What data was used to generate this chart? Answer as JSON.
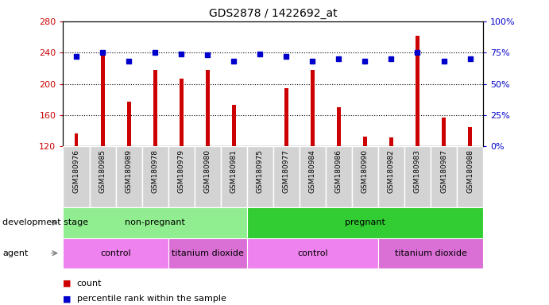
{
  "title": "GDS2878 / 1422692_at",
  "samples": [
    "GSM180976",
    "GSM180985",
    "GSM180989",
    "GSM180978",
    "GSM180979",
    "GSM180980",
    "GSM180981",
    "GSM180975",
    "GSM180977",
    "GSM180984",
    "GSM180986",
    "GSM180990",
    "GSM180982",
    "GSM180983",
    "GSM180987",
    "GSM180988"
  ],
  "counts": [
    137,
    243,
    177,
    218,
    207,
    218,
    173,
    118,
    195,
    218,
    170,
    133,
    132,
    262,
    157,
    145
  ],
  "percentiles": [
    72,
    75,
    68,
    75,
    74,
    73,
    68,
    74,
    72,
    68,
    70,
    68,
    70,
    75,
    68,
    70
  ],
  "ylim_left": [
    120,
    280
  ],
  "ylim_right": [
    0,
    100
  ],
  "yticks_left": [
    120,
    160,
    200,
    240,
    280
  ],
  "yticks_right": [
    0,
    25,
    50,
    75,
    100
  ],
  "bar_color": "#cc0000",
  "dot_color": "#0000cc",
  "bg_color": "#ffffff",
  "dev_stage_groups": [
    {
      "label": "non-pregnant",
      "start": 0,
      "end": 6,
      "color": "#90ee90"
    },
    {
      "label": "pregnant",
      "start": 7,
      "end": 15,
      "color": "#32cd32"
    }
  ],
  "agent_groups": [
    {
      "label": "control",
      "start": 0,
      "end": 3,
      "color": "#ee82ee"
    },
    {
      "label": "titanium dioxide",
      "start": 4,
      "end": 6,
      "color": "#da70d6"
    },
    {
      "label": "control",
      "start": 7,
      "end": 11,
      "color": "#ee82ee"
    },
    {
      "label": "titanium dioxide",
      "start": 12,
      "end": 15,
      "color": "#da70d6"
    }
  ],
  "legend_count_label": "count",
  "legend_pct_label": "percentile rank within the sample",
  "left_label_color": "#cc0000",
  "right_label_color": "#0000cc",
  "xticklabel_bg": "#d3d3d3"
}
